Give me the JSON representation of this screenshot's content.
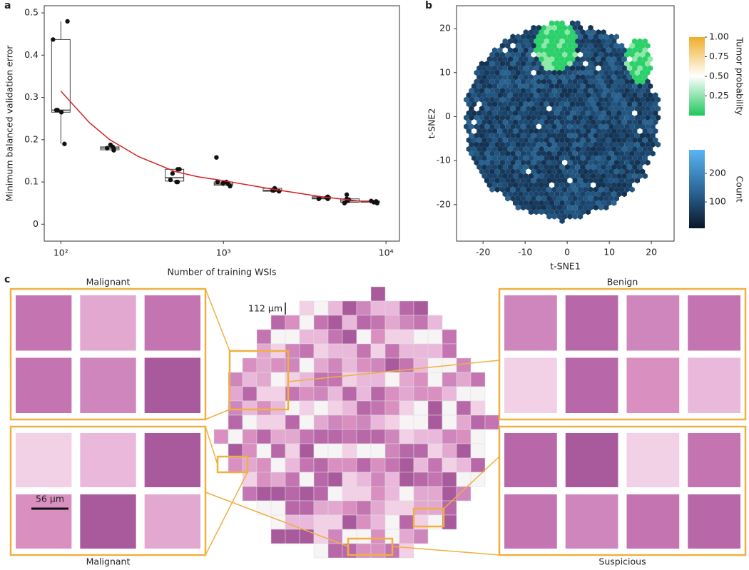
{
  "panel_labels": [
    "a",
    "b",
    "c"
  ],
  "chart_data": [
    {
      "type": "box",
      "xlabel": "Number of training WSIs",
      "ylabel": "Minimum balanced validation error",
      "log_x": true,
      "xlim": [
        79,
        12100
      ],
      "ylim": [
        -0.04,
        0.517
      ],
      "xticks": [
        {
          "value": 100,
          "label": "10²"
        },
        {
          "value": 1000,
          "label": "10³"
        },
        {
          "value": 10000,
          "label": "10⁴"
        }
      ],
      "yticks": [
        0,
        0.1,
        0.2,
        0.3,
        0.4,
        0.5
      ],
      "x": [
        100,
        200,
        500,
        1000,
        2000,
        4000,
        6000,
        8000
      ],
      "whisker_low": [
        0.19,
        0.175,
        0.1,
        0.09,
        0.078,
        0.06,
        0.05,
        0.05
      ],
      "q1": [
        0.265,
        0.176,
        0.102,
        0.092,
        0.078,
        0.06,
        0.052,
        0.052
      ],
      "median": [
        0.27,
        0.18,
        0.11,
        0.095,
        0.08,
        0.062,
        0.055,
        0.054
      ],
      "q3": [
        0.437,
        0.183,
        0.13,
        0.1,
        0.085,
        0.065,
        0.06,
        0.055
      ],
      "whisker_high": [
        0.48,
        0.188,
        0.13,
        0.1,
        0.085,
        0.065,
        0.06,
        0.055
      ],
      "points": [
        [
          0.437,
          0.48,
          0.27,
          0.27,
          0.19,
          0.265
        ],
        [
          0.18,
          0.175,
          0.178,
          0.188,
          0.183
        ],
        [
          0.1,
          0.13,
          0.105,
          0.12,
          0.13,
          0.1
        ],
        [
          0.158,
          0.1,
          0.097,
          0.09,
          0.095,
          0.1
        ],
        [
          0.08,
          0.078,
          0.082,
          0.085,
          0.08
        ],
        [
          0.06,
          0.065,
          0.062,
          0.06,
          0.063
        ],
        [
          0.055,
          0.05,
          0.07,
          0.058,
          0.06
        ],
        [
          0.05,
          0.055,
          0.052,
          0.054
        ]
      ],
      "box_color": "#444444",
      "point_color": "#111111",
      "fit": {
        "color": "#d42020",
        "x": [
          100,
          150,
          200,
          300,
          500,
          700,
          1000,
          2000,
          4000,
          8000
        ],
        "y": [
          0.315,
          0.24,
          0.2,
          0.16,
          0.125,
          0.112,
          0.103,
          0.083,
          0.065,
          0.052
        ]
      }
    },
    {
      "type": "hexbin",
      "xlabel": "t-SNE1",
      "ylabel": "t-SNE2",
      "xlim": [
        -26.3,
        25.4
      ],
      "ylim": [
        -28.3,
        25.2
      ],
      "xticks": [
        -20,
        -10,
        0,
        10,
        20
      ],
      "yticks": [
        -20,
        -10,
        0,
        10,
        20
      ],
      "colorbars": [
        {
          "label": "Tumor probability",
          "lim": [
            0,
            1
          ],
          "ticks": [
            {
              "value": 0.25,
              "label": "0.25"
            },
            {
              "value": 0.5,
              "label": "0.50"
            },
            {
              "value": 0.75,
              "label": "0.75"
            },
            {
              "value": 1,
              "label": "1.00"
            }
          ],
          "colors": [
            "#1ec85a",
            "#ffffff",
            "#efae2a"
          ]
        },
        {
          "label": "Count",
          "lim": [
            8,
            282
          ],
          "ticks": [
            100,
            200
          ],
          "colors": [
            "#0a1628",
            "#2d6a9c",
            "#5ab4f4"
          ]
        }
      ]
    }
  ],
  "mosaic": {
    "scale_bars": [
      "112 µm",
      "56 µm"
    ],
    "insets": [
      "Malignant",
      "Benign",
      "Malignant",
      "Suspicious"
    ],
    "border_color": "#efb040"
  }
}
